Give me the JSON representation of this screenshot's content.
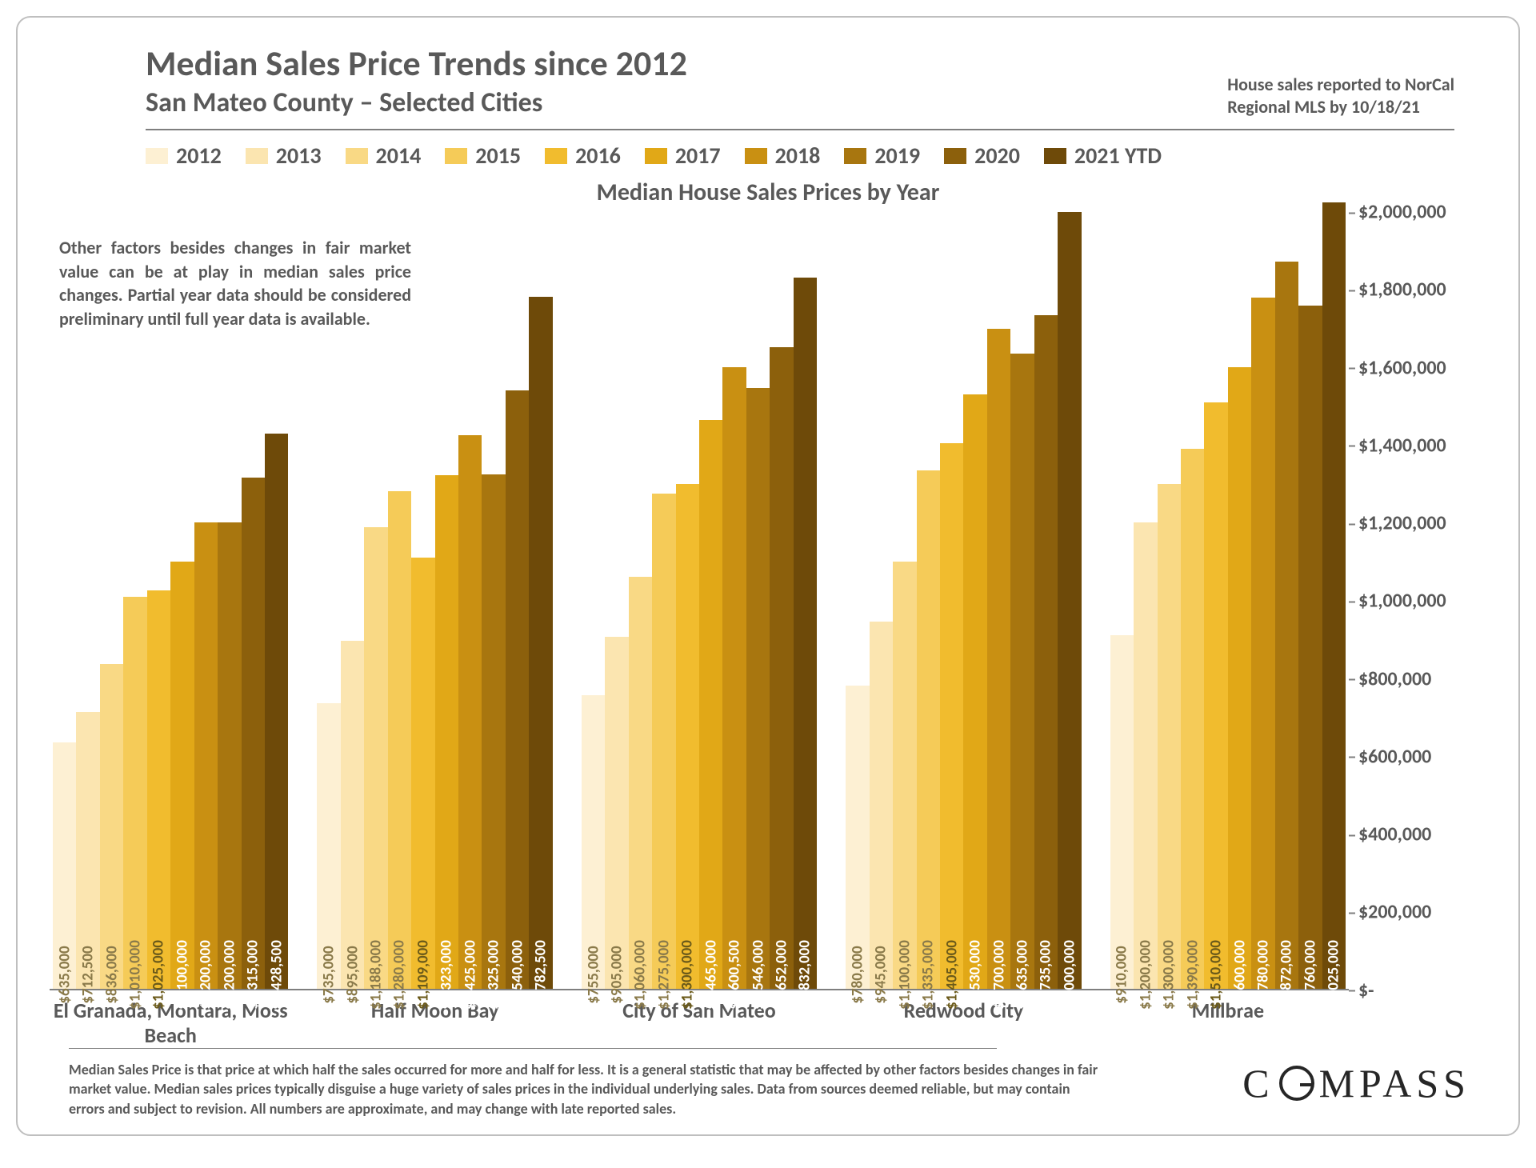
{
  "title": "Median Sales Price Trends since 2012",
  "subtitle": "San Mateo County – Selected Cities",
  "source_note": "House sales reported to NorCal Regional MLS by 10/18/21",
  "chart_title": "Median House Sales Prices by Year",
  "note_box": "Other factors besides changes in fair market value can be at play in median sales price changes. Partial year data should be considered preliminary until full year data is available.",
  "disclaimer": "Median Sales Price is that price at which half the sales occurred for more and half for less. It is a general statistic that may be affected by other factors besides changes in fair market value. Median sales prices typically disguise a huge variety of sales prices in the individual underlying sales. Data from sources deemed reliable, but may contain errors and subject to revision. All numbers are approximate, and may change with late reported sales.",
  "brand": "COMPASS",
  "y_axis": {
    "min": 0,
    "max": 2000000,
    "step": 200000,
    "ticks": [
      "$-",
      "$200,000",
      "$400,000",
      "$600,000",
      "$800,000",
      "$1,000,000",
      "$1,200,000",
      "$1,400,000",
      "$1,600,000",
      "$1,800,000",
      "$2,000,000"
    ],
    "tick_color": "#595959",
    "tick_fontsize": 24
  },
  "legend_years": [
    "2012",
    "2013",
    "2014",
    "2015",
    "2016",
    "2017",
    "2018",
    "2019",
    "2020",
    "2021 YTD"
  ],
  "year_colors": [
    "#fdf0d3",
    "#fbe5b0",
    "#f9d985",
    "#f5cb58",
    "#f1bc2e",
    "#e1a817",
    "#c99012",
    "#a8760f",
    "#8c600c",
    "#6e4a09"
  ],
  "label_text_colors": [
    "#8a7a4a",
    "#8a7a4a",
    "#8a7a4a",
    "#8a7a4a",
    "#6b5a1a",
    "#ffffff",
    "#ffffff",
    "#ffffff",
    "#ffffff",
    "#ffffff"
  ],
  "cities": [
    {
      "name": "El Granada, Montara, Moss Beach",
      "values": [
        635000,
        712500,
        836000,
        1010000,
        1025000,
        1100000,
        1200000,
        1200000,
        1315000,
        1428500
      ],
      "labels": [
        "$635,000",
        "$712,500",
        "$836,000",
        "$1,010,000",
        "$1,025,000",
        "$1,100,000",
        "$1,200,000",
        "$1,200,000",
        "$1,315,000",
        "$1,428,500"
      ]
    },
    {
      "name": "Half Moon Bay",
      "values": [
        735000,
        895000,
        1188000,
        1280000,
        1109000,
        1323000,
        1425000,
        1325000,
        1540000,
        1782500
      ],
      "labels": [
        "$735,000",
        "$895,000",
        "$1,188,000",
        "$1,280,000",
        "$1,109,000",
        "$1,323,000",
        "$1,425,000",
        "$1,325,000",
        "$1,540,000",
        "$1,782,500"
      ]
    },
    {
      "name": "City of San Mateo",
      "values": [
        755000,
        905000,
        1060000,
        1275000,
        1300000,
        1465000,
        1600500,
        1546000,
        1652000,
        1832000
      ],
      "labels": [
        "$755,000",
        "$905,000",
        "$1,060,000",
        "$1,275,000",
        "$1,300,000",
        "$1,465,000",
        "$1,600,500",
        "$1,546,000",
        "$1,652,000",
        "$1,832,000"
      ]
    },
    {
      "name": "Redwood City",
      "values": [
        780000,
        945000,
        1100000,
        1335000,
        1405000,
        1530000,
        1700000,
        1635000,
        1735000,
        2000000
      ],
      "labels": [
        "$780,000",
        "$945,000",
        "$1,100,000",
        "$1,335,000",
        "$1,405,000",
        "$1,530,000",
        "$1,700,000",
        "$1,635,000",
        "$1,735,000",
        "$2,000,000"
      ]
    },
    {
      "name": "Millbrae",
      "values": [
        910000,
        1200000,
        1300000,
        1390000,
        1510000,
        1600000,
        1780000,
        1872000,
        1760000,
        2025000
      ],
      "labels": [
        "$910,000",
        "$1,200,000",
        "$1,300,000",
        "$1,390,000",
        "$1,510,000",
        "$1,600,000",
        "$1,780,000",
        "$1,872,000",
        "$1,760,000",
        "$2,025,000"
      ]
    }
  ],
  "style": {
    "background_color": "#ffffff",
    "border_color": "#bfbfbf",
    "text_color": "#595959",
    "axis_color": "#7f7f7f",
    "title_fontsize": 44,
    "subtitle_fontsize": 34,
    "legend_fontsize": 28,
    "bar_label_fontsize": 19,
    "xlabel_fontsize": 26
  }
}
